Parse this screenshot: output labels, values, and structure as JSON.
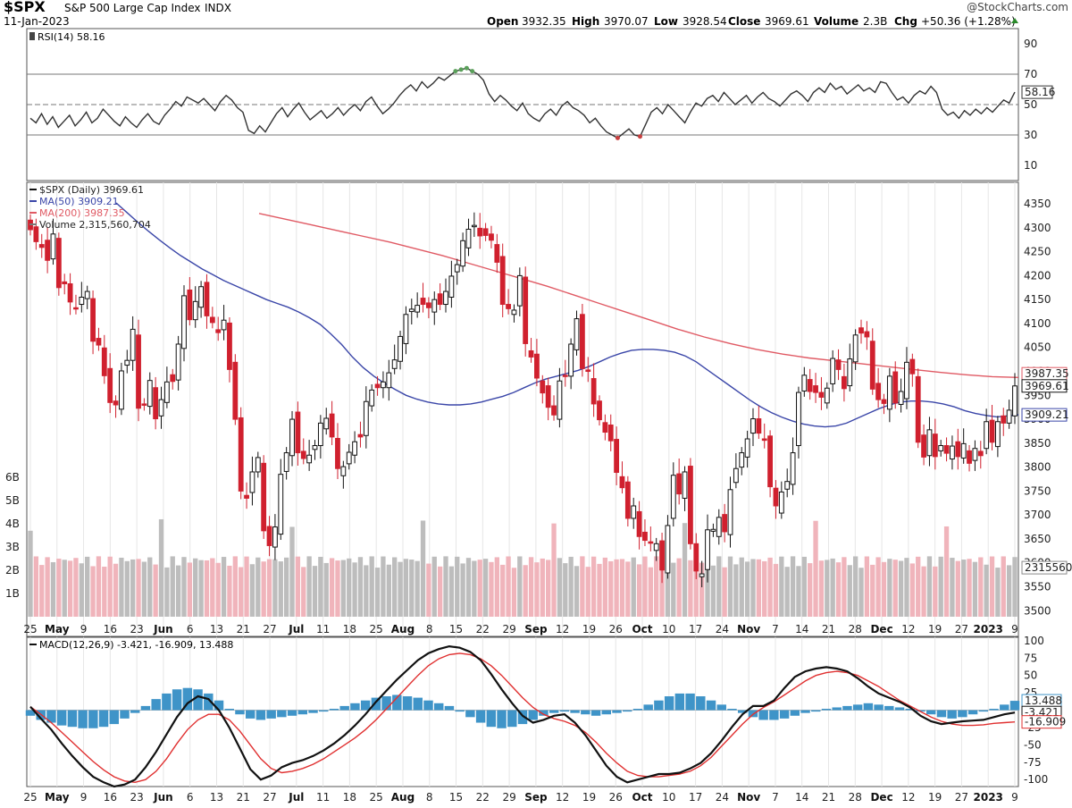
{
  "header": {
    "symbol": "$SPX",
    "name": "S&P 500 Large Cap Index",
    "exchange": "INDX",
    "date": "11-Jan-2023",
    "watermark": "@StockCharts.com",
    "open_label": "Open",
    "open": "3932.35",
    "high_label": "High",
    "high": "3970.07",
    "low_label": "Low",
    "low": "3928.54",
    "close_label": "Close",
    "close": "3969.61",
    "volume_label": "Volume",
    "volume": "2.3B",
    "chg_label": "Chg",
    "chg": "+50.36 (+1.28%)"
  },
  "colors": {
    "up": "#111111",
    "down": "#d0202e",
    "ma50": "#3a46a8",
    "ma200": "#e05a64",
    "vol_down": "#f0b4bb",
    "vol_up": "#bdbdbd",
    "macd": "#111111",
    "signal": "#e03030",
    "hist": "#3f94c8",
    "rsi": "#333333",
    "overbought": "#5aa05a",
    "oversold": "#c84040"
  },
  "chart_data": [
    {
      "type": "line",
      "panel": "rsi",
      "legend": "RSI(14) 58.16",
      "ylim": [
        0,
        100
      ],
      "yticks": [
        10,
        30,
        50,
        70,
        90
      ],
      "levels": [
        30,
        50,
        70
      ],
      "last_label": "58.16",
      "values": [
        41,
        38,
        44,
        37,
        42,
        35,
        39,
        43,
        36,
        40,
        45,
        38,
        41,
        47,
        43,
        39,
        36,
        42,
        38,
        35,
        40,
        44,
        39,
        37,
        43,
        47,
        52,
        49,
        55,
        53,
        51,
        54,
        50,
        46,
        52,
        56,
        53,
        48,
        45,
        33,
        31,
        36,
        32,
        38,
        44,
        48,
        42,
        47,
        51,
        45,
        40,
        43,
        46,
        41,
        44,
        48,
        43,
        47,
        50,
        46,
        52,
        55,
        49,
        44,
        47,
        51,
        56,
        60,
        63,
        59,
        65,
        61,
        64,
        68,
        66,
        69,
        72,
        73,
        74,
        72,
        70,
        66,
        57,
        52,
        56,
        53,
        49,
        46,
        51,
        44,
        41,
        39,
        44,
        47,
        43,
        49,
        52,
        48,
        46,
        43,
        38,
        41,
        36,
        32,
        30,
        28,
        31,
        34,
        30,
        29,
        37,
        45,
        48,
        44,
        50,
        46,
        42,
        38,
        45,
        51,
        49,
        54,
        56,
        52,
        58,
        54,
        50,
        53,
        56,
        51,
        55,
        58,
        54,
        52,
        49,
        53,
        57,
        59,
        56,
        52,
        58,
        61,
        58,
        64,
        60,
        62,
        57,
        60,
        63,
        59,
        61,
        58,
        65,
        64,
        58,
        53,
        55,
        51,
        56,
        59,
        57,
        62,
        58,
        47,
        43,
        45,
        41,
        46,
        43,
        47,
        44,
        48,
        45,
        49,
        53,
        51,
        58.16
      ],
      "x_labels": [
        "25",
        "May",
        "9",
        "16",
        "23",
        "Jun",
        "6",
        "13",
        "21",
        "27",
        "Jul",
        "11",
        "18",
        "25",
        "Aug",
        "8",
        "15",
        "22",
        "29",
        "Sep",
        "12",
        "19",
        "26",
        "Oct",
        "10",
        "17",
        "24",
        "Nov",
        "7",
        "14",
        "21",
        "28",
        "Dec",
        "12",
        "19",
        "27",
        "2023",
        "9"
      ]
    },
    {
      "type": "candlestick",
      "panel": "price",
      "title": "$SPX (Daily) 3969.61",
      "legend": [
        "$SPX (Daily) 3969.61",
        "MA(50) 3909.21",
        "MA(200) 3987.35",
        "Volume 2,315,560,704"
      ],
      "ylim": [
        3480,
        4380
      ],
      "yticks": [
        3500,
        3550,
        3600,
        3650,
        3700,
        3750,
        3800,
        3850,
        3900,
        3950,
        4000,
        4050,
        4100,
        4150,
        4200,
        4250,
        4300,
        4350
      ],
      "last_close_label": "3969.61",
      "ma50_label": "3909.21",
      "ma200_label": "3987.35",
      "volume_label": "2315560",
      "volume_axis": [
        "1B",
        "2B",
        "3B",
        "4B",
        "5B",
        "6B"
      ],
      "closes": [
        4296,
        4271,
        4259,
        4232,
        4287,
        4175,
        4183,
        4145,
        4131,
        4155,
        4167,
        4063,
        4055,
        3991,
        3935,
        3930,
        4001,
        4023,
        4088,
        3923,
        3930,
        3981,
        3901,
        3941,
        3978,
        3979,
        4057,
        4158,
        4108,
        4146,
        4177,
        4116,
        4102,
        4081,
        4107,
        4004,
        3900,
        3750,
        3735,
        3790,
        3820,
        3667,
        3636,
        3675,
        3785,
        3830,
        3900,
        3830,
        3818,
        3825,
        3845,
        3892,
        3902,
        3863,
        3797,
        3801,
        3831,
        3853,
        3863,
        3937,
        3961,
        3966,
        3978,
        3997,
        4024,
        4073,
        4119,
        4130,
        4138,
        4140,
        4133,
        4150,
        4140,
        4167,
        4199,
        4223,
        4273,
        4297,
        4305,
        4283,
        4284,
        4274,
        4228,
        4140,
        4131,
        4128,
        4200,
        4058,
        4030,
        3986,
        3955,
        3925,
        3909,
        3980,
        3990,
        4057,
        4110,
        4006,
        4000,
        3932,
        3899,
        3873,
        3855,
        3789,
        3757,
        3693,
        3719,
        3655,
        3647,
        3641,
        3640,
        3585,
        3678,
        3783,
        3744,
        3790,
        3640,
        3583,
        3577,
        3669,
        3670,
        3695,
        3665,
        3753,
        3797,
        3830,
        3859,
        3901,
        3871,
        3856,
        3759,
        3719,
        3748,
        3770,
        3830,
        3956,
        3992,
        3958,
        3956,
        3946,
        3965,
        4027,
        4004,
        3964,
        4026,
        4076,
        4080,
        4072,
        3963,
        3941,
        3933,
        3990,
        3934,
        3958,
        4019,
        3995,
        3852,
        3821,
        3878,
        3822,
        3845,
        3829,
        3844,
        3822,
        3849,
        3808,
        3839,
        3824,
        3895,
        3852,
        3895,
        3892,
        3919,
        3969.61
      ],
      "ma50": [
        4352,
        4332,
        4312,
        4293,
        4275,
        4258,
        4242,
        4228,
        4214,
        4202,
        4190,
        4180,
        4170,
        4160,
        4150,
        4142,
        4134,
        4124,
        4112,
        4098,
        4078,
        4056,
        4030,
        4008,
        3990,
        3975,
        3962,
        3950,
        3942,
        3936,
        3932,
        3930,
        3930,
        3932,
        3936,
        3942,
        3948,
        3956,
        3966,
        3976,
        3984,
        3990,
        3996,
        4002,
        4010,
        4020,
        4030,
        4038,
        4044,
        4046,
        4046,
        4044,
        4040,
        4032,
        4020,
        4004,
        3988,
        3972,
        3956,
        3940,
        3926,
        3914,
        3904,
        3896,
        3890,
        3886,
        3884,
        3886,
        3892,
        3902,
        3912,
        3922,
        3930,
        3936,
        3938,
        3938,
        3936,
        3932,
        3926,
        3918,
        3912,
        3908,
        3905,
        3907,
        3909.21
      ],
      "ma200": [
        4330,
        4318,
        4306,
        4294,
        4282,
        4270,
        4256,
        4242,
        4226,
        4210,
        4194,
        4178,
        4160,
        4142,
        4124,
        4106,
        4088,
        4072,
        4058,
        4046,
        4036,
        4028,
        4022,
        4016,
        4010,
        4004,
        3998,
        3993,
        3989,
        3987.35
      ]
    },
    {
      "type": "line",
      "panel": "macd",
      "legend": "MACD(12,26,9) -3.421, -16.909, 13.488",
      "ylim": [
        -110,
        105
      ],
      "yticks": [
        100,
        75,
        50,
        25,
        0,
        -25,
        -50,
        -75,
        -100
      ],
      "macd_label": "-3.421",
      "signal_label": "-16.909",
      "hist_label": "13.488",
      "macd": [
        5,
        -12,
        -28,
        -48,
        -66,
        -82,
        -96,
        -104,
        -110,
        -107,
        -100,
        -82,
        -60,
        -35,
        -10,
        10,
        20,
        16,
        0,
        -25,
        -55,
        -85,
        -100,
        -94,
        -82,
        -76,
        -72,
        -66,
        -58,
        -48,
        -36,
        -22,
        -6,
        12,
        28,
        44,
        58,
        72,
        82,
        88,
        92,
        90,
        84,
        72,
        52,
        30,
        10,
        -8,
        -18,
        -14,
        -8,
        -6,
        -18,
        -36,
        -58,
        -80,
        -96,
        -104,
        -100,
        -96,
        -92,
        -92,
        -90,
        -84,
        -76,
        -62,
        -44,
        -24,
        -6,
        6,
        6,
        14,
        32,
        48,
        56,
        60,
        62,
        60,
        56,
        46,
        34,
        24,
        18,
        12,
        4,
        -8,
        -16,
        -20,
        -18,
        -16,
        -15,
        -14,
        -10,
        -6,
        -3.421
      ],
      "signal": [
        5,
        -6,
        -18,
        -32,
        -46,
        -60,
        -74,
        -86,
        -96,
        -102,
        -104,
        -100,
        -88,
        -70,
        -48,
        -28,
        -14,
        -6,
        -6,
        -14,
        -30,
        -50,
        -70,
        -84,
        -90,
        -88,
        -84,
        -78,
        -70,
        -60,
        -50,
        -40,
        -28,
        -14,
        2,
        18,
        34,
        50,
        64,
        74,
        80,
        82,
        80,
        74,
        64,
        50,
        34,
        18,
        4,
        -6,
        -12,
        -16,
        -22,
        -32,
        -46,
        -62,
        -76,
        -88,
        -94,
        -96,
        -96,
        -94,
        -92,
        -88,
        -80,
        -68,
        -52,
        -36,
        -20,
        -6,
        4,
        12,
        22,
        32,
        42,
        50,
        54,
        56,
        54,
        50,
        42,
        34,
        24,
        14,
        6,
        -2,
        -10,
        -16,
        -20,
        -22,
        -22,
        -21,
        -19,
        -18,
        -16.909
      ],
      "hist": [
        -8,
        -14,
        -18,
        -22,
        -24,
        -26,
        -26,
        -24,
        -20,
        -12,
        -4,
        6,
        16,
        24,
        30,
        32,
        30,
        24,
        14,
        2,
        -6,
        -12,
        -14,
        -12,
        -10,
        -8,
        -6,
        -4,
        -2,
        2,
        6,
        10,
        14,
        18,
        20,
        22,
        20,
        18,
        14,
        10,
        6,
        -2,
        -10,
        -18,
        -24,
        -26,
        -24,
        -20,
        -14,
        -8,
        -4,
        -2,
        -4,
        -6,
        -8,
        -6,
        -4,
        -2,
        2,
        8,
        14,
        20,
        24,
        24,
        20,
        14,
        8,
        2,
        -4,
        -10,
        -14,
        -14,
        -12,
        -8,
        -4,
        -2,
        2,
        4,
        6,
        8,
        10,
        8,
        6,
        4,
        2,
        -2,
        -6,
        -10,
        -12,
        -10,
        -6,
        -2,
        2,
        8,
        13.488
      ],
      "x_labels": [
        "25",
        "May",
        "9",
        "16",
        "23",
        "Jun",
        "6",
        "13",
        "21",
        "27",
        "Jul",
        "11",
        "18",
        "25",
        "Aug",
        "8",
        "15",
        "22",
        "29",
        "Sep",
        "12",
        "19",
        "26",
        "Oct",
        "10",
        "17",
        "24",
        "Nov",
        "7",
        "14",
        "21",
        "28",
        "Dec",
        "12",
        "19",
        "27",
        "2023",
        "9"
      ]
    }
  ]
}
